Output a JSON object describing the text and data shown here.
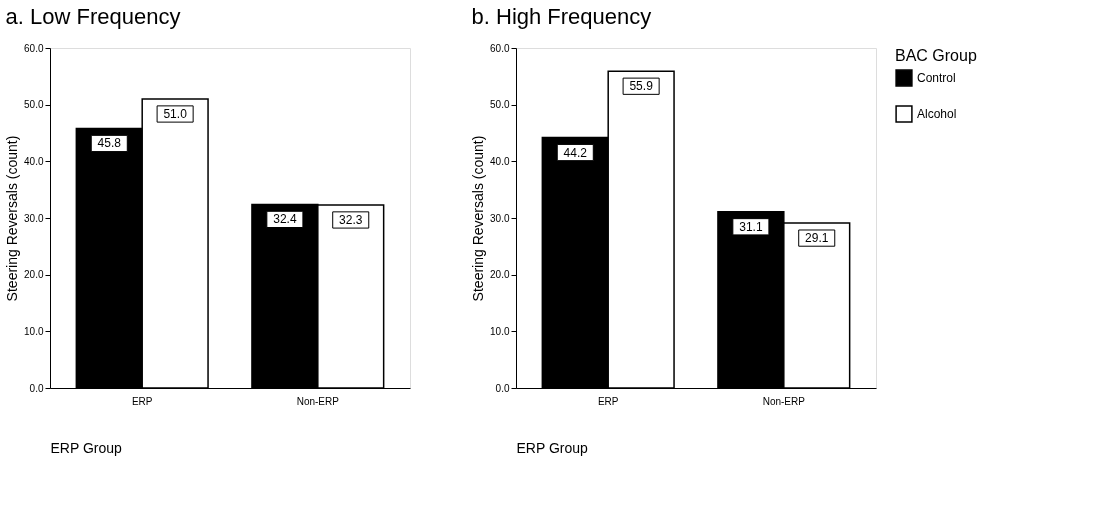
{
  "chart_data": [
    {
      "type": "bar",
      "title": "a. Low Frequency",
      "xlabel": "ERP Group",
      "ylabel": "Steering Reversals (count)",
      "categories": [
        "ERP",
        "Non-ERP"
      ],
      "series": [
        {
          "name": "Control",
          "color": "#000000",
          "values": [
            45.8,
            32.4
          ],
          "value_labels": [
            "45.8",
            "32.4"
          ]
        },
        {
          "name": "Alcohol",
          "color": "#ffffff",
          "values": [
            51.0,
            32.3
          ],
          "value_labels": [
            "51.0",
            "32.3"
          ]
        }
      ],
      "ylim": [
        0,
        60
      ],
      "yticks": [
        {
          "value": 0,
          "label": "0.0"
        },
        {
          "value": 10,
          "label": "10.0"
        },
        {
          "value": 20,
          "label": "20.0"
        },
        {
          "value": 30,
          "label": "30.0"
        },
        {
          "value": 40,
          "label": "40.0"
        },
        {
          "value": 50,
          "label": "50.0"
        },
        {
          "value": 60,
          "label": "60.0"
        }
      ],
      "grid": false,
      "legend": "right",
      "legend_title": "BAC Group"
    },
    {
      "type": "bar",
      "title": "b. High Frequency",
      "xlabel": "ERP Group",
      "ylabel": "Steering Reversals (count)",
      "categories": [
        "ERP",
        "Non-ERP"
      ],
      "series": [
        {
          "name": "Control",
          "color": "#000000",
          "values": [
            44.2,
            31.1
          ],
          "value_labels": [
            "44.2",
            "31.1"
          ]
        },
        {
          "name": "Alcohol",
          "color": "#ffffff",
          "values": [
            55.9,
            29.1
          ],
          "value_labels": [
            "55.9",
            "29.1"
          ]
        }
      ],
      "ylim": [
        0,
        60
      ],
      "yticks": [
        {
          "value": 0,
          "label": "0.0"
        },
        {
          "value": 10,
          "label": "10.0"
        },
        {
          "value": 20,
          "label": "20.0"
        },
        {
          "value": 30,
          "label": "30.0"
        },
        {
          "value": 40,
          "label": "40.0"
        },
        {
          "value": 50,
          "label": "50.0"
        },
        {
          "value": 60,
          "label": "60.0"
        }
      ],
      "grid": false,
      "legend": "right"
    }
  ]
}
